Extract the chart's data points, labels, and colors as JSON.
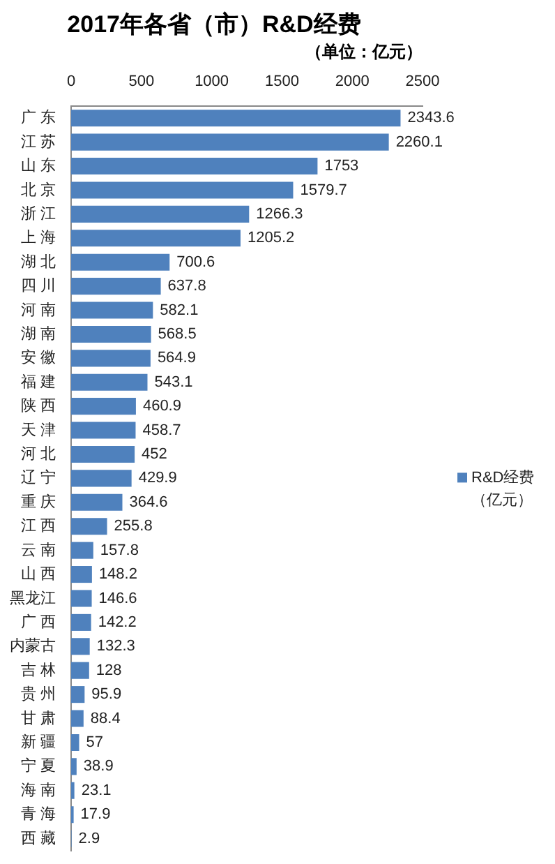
{
  "chart_data": {
    "type": "bar",
    "orientation": "horizontal",
    "title": "2017年各省（市）R&D经费",
    "subtitle": "（单位：亿元）",
    "categories": [
      "广 东",
      "江 苏",
      "山 东",
      "北 京",
      "浙 江",
      "上 海",
      "湖 北",
      "四 川",
      "河 南",
      "湖 南",
      "安 徽",
      "福 建",
      "陕 西",
      "天 津",
      "河 北",
      "辽 宁",
      "重 庆",
      "江 西",
      "云 南",
      "山 西",
      "黑龙江",
      "广 西",
      "内蒙古",
      "吉 林",
      "贵 州",
      "甘 肃",
      "新 疆",
      "宁 夏",
      "海 南",
      "青 海",
      "西 藏"
    ],
    "series": [
      {
        "name": "R&D经费（亿元）",
        "color": "#4f81bd",
        "values": [
          2343.6,
          2260.1,
          1753,
          1579.7,
          1266.3,
          1205.2,
          700.6,
          637.8,
          582.1,
          568.5,
          564.9,
          543.1,
          460.9,
          458.7,
          452,
          429.9,
          364.6,
          255.8,
          157.8,
          148.2,
          146.6,
          142.2,
          132.3,
          128,
          95.9,
          88.4,
          57,
          38.9,
          23.1,
          17.9,
          2.9
        ]
      }
    ],
    "xlim": [
      0,
      2500
    ],
    "xticks": [
      0,
      500,
      1000,
      1500,
      2000,
      2500
    ],
    "data_labels": true,
    "legend": "right",
    "grid": false
  }
}
